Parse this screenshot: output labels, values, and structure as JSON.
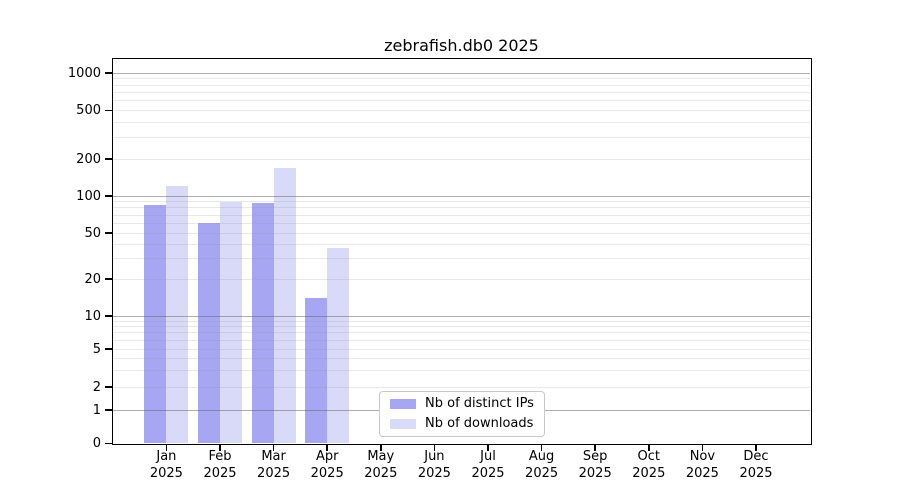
{
  "title": "zebrafish.db0 2025",
  "year_label": "2025",
  "chart_data": {
    "type": "bar",
    "title": "zebrafish.db0 2025",
    "categories": [
      "Jan 2025",
      "Feb 2025",
      "Mar 2025",
      "Apr 2025",
      "May 2025",
      "Jun 2025",
      "Jul 2025",
      "Aug 2025",
      "Sep 2025",
      "Oct 2025",
      "Nov 2025",
      "Dec 2025"
    ],
    "month_labels": [
      "Jan",
      "Feb",
      "Mar",
      "Apr",
      "May",
      "Jun",
      "Jul",
      "Aug",
      "Sep",
      "Oct",
      "Nov",
      "Dec"
    ],
    "series": [
      {
        "name": "Nb of distinct IPs",
        "key": "distinct-ips",
        "color": "#a6a6f3",
        "values": [
          85,
          60,
          88,
          14,
          0,
          0,
          0,
          0,
          0,
          0,
          0,
          0
        ]
      },
      {
        "name": "Nb of downloads",
        "key": "downloads",
        "color": "#d9d9f8",
        "values": [
          120,
          90,
          170,
          37,
          0,
          0,
          0,
          0,
          0,
          0,
          0,
          0
        ]
      }
    ],
    "yscale": "log-with-zero-baseline",
    "y_ticks": [
      0,
      1,
      2,
      5,
      10,
      20,
      50,
      100,
      200,
      500,
      1000
    ],
    "y_major_gridlines": [
      1,
      10,
      100,
      1000
    ],
    "ylim": [
      0,
      1400
    ],
    "grid": "horizontal",
    "legend_position": "bottom-center",
    "bar_gap_between_series": 0
  },
  "legend": {
    "items": [
      {
        "label": "Nb of distinct IPs",
        "color": "#a6a6f3"
      },
      {
        "label": "Nb of downloads",
        "color": "#d9d9f8"
      }
    ]
  }
}
